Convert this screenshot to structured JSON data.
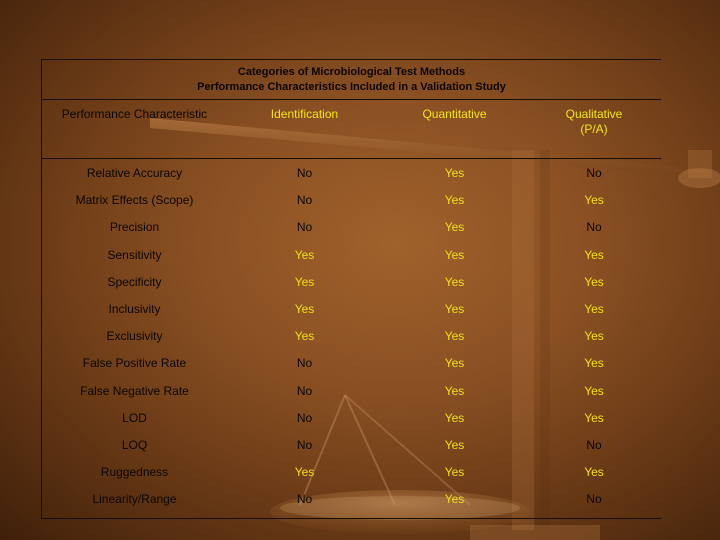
{
  "title_lines": [
    "Categories of Microbiological Test Methods",
    "Performance Characteristics Included in a Validation Study"
  ],
  "headers": {
    "characteristic": "Performance Characteristic",
    "identification": "Identification",
    "quantitative": "Quantitative",
    "qualitative_line1": "Qualitative",
    "qualitative_line2": "(P/A)"
  },
  "colors": {
    "yes": "#f0e018",
    "no": "#0c0602",
    "header_accent": "#f2e51a"
  },
  "rows": [
    {
      "name": "Relative Accuracy",
      "identification": "No",
      "quantitative": "Yes",
      "qualitative": "No"
    },
    {
      "name": "Matrix Effects (Scope)",
      "identification": "No",
      "quantitative": "Yes",
      "qualitative": "Yes"
    },
    {
      "name": "Precision",
      "identification": "No",
      "quantitative": "Yes",
      "qualitative": "No"
    },
    {
      "name": "Sensitivity",
      "identification": "Yes",
      "quantitative": "Yes",
      "qualitative": "Yes"
    },
    {
      "name": "Specificity",
      "identification": "Yes",
      "quantitative": "Yes",
      "qualitative": "Yes"
    },
    {
      "name": "Inclusivity",
      "identification": "Yes",
      "quantitative": "Yes",
      "qualitative": "Yes"
    },
    {
      "name": "Exclusivity",
      "identification": "Yes",
      "quantitative": "Yes",
      "qualitative": "Yes"
    },
    {
      "name": "False Positive Rate",
      "identification": "No",
      "quantitative": "Yes",
      "qualitative": "Yes"
    },
    {
      "name": "False Negative Rate",
      "identification": "No",
      "quantitative": "Yes",
      "qualitative": "Yes"
    },
    {
      "name": "LOD",
      "identification": "No",
      "quantitative": "Yes",
      "qualitative": "Yes"
    },
    {
      "name": "LOQ",
      "identification": "No",
      "quantitative": "Yes",
      "qualitative": "No"
    },
    {
      "name": "Ruggedness",
      "identification": "Yes",
      "quantitative": "Yes",
      "qualitative": "Yes"
    },
    {
      "name": "Linearity/Range",
      "identification": "No",
      "quantitative": "Yes",
      "qualitative": "No"
    }
  ]
}
